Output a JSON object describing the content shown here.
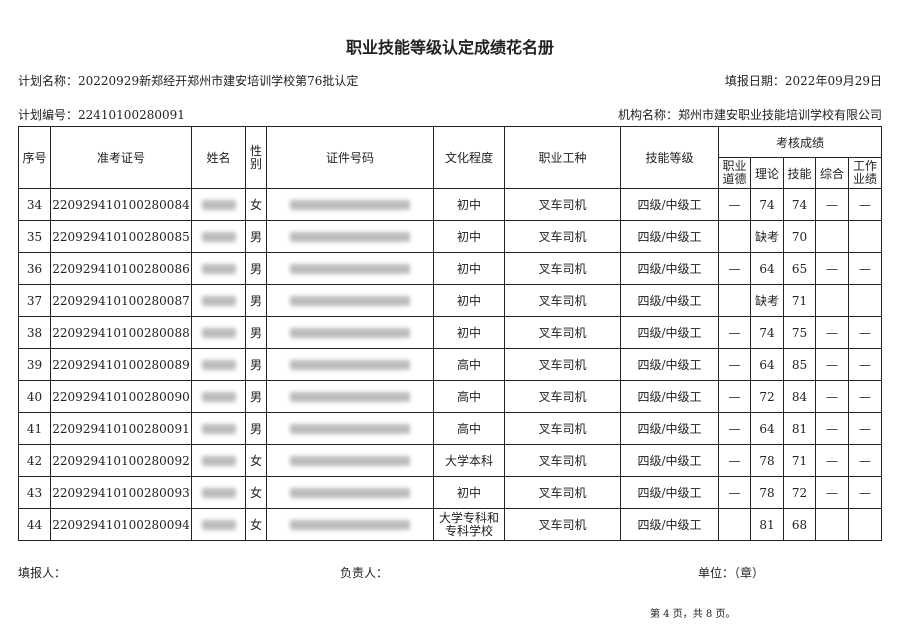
{
  "title": "职业技能等级认定成绩花名册",
  "plan_name": "计划名称：20220929新郑经开郑州市建安培训学校第76批认定",
  "report_date": "填报日期：2022年09月29日",
  "plan_number": "计划编号：22410100280091",
  "org_name": "机构名称：郑州市建安职业技能培训学校有限公司",
  "headers": {
    "seq": "序号",
    "exam_no": "准考证号",
    "name": "姓名",
    "gender": "性别",
    "id_no": "证件号码",
    "education": "文化程度",
    "occupation": "职业工种",
    "level": "技能等级",
    "scores": "考核成绩",
    "ethics": "职业道德",
    "theory": "理论",
    "skill": "技能",
    "overall": "综合",
    "performance": "工作业绩"
  },
  "rows": [
    {
      "seq": "34",
      "exam_no": "220929410100280084",
      "gender": "女",
      "education": "初中",
      "occupation": "叉车司机",
      "level": "四级/中级工",
      "ethics": "—",
      "theory": "74",
      "skill": "74",
      "overall": "—",
      "performance": "—"
    },
    {
      "seq": "35",
      "exam_no": "220929410100280085",
      "gender": "男",
      "education": "初中",
      "occupation": "叉车司机",
      "level": "四级/中级工",
      "ethics": "",
      "theory": "缺考",
      "skill": "70",
      "overall": "",
      "performance": ""
    },
    {
      "seq": "36",
      "exam_no": "220929410100280086",
      "gender": "男",
      "education": "初中",
      "occupation": "叉车司机",
      "level": "四级/中级工",
      "ethics": "—",
      "theory": "64",
      "skill": "65",
      "overall": "—",
      "performance": "—"
    },
    {
      "seq": "37",
      "exam_no": "220929410100280087",
      "gender": "男",
      "education": "初中",
      "occupation": "叉车司机",
      "level": "四级/中级工",
      "ethics": "",
      "theory": "缺考",
      "skill": "71",
      "overall": "",
      "performance": ""
    },
    {
      "seq": "38",
      "exam_no": "220929410100280088",
      "gender": "男",
      "education": "初中",
      "occupation": "叉车司机",
      "level": "四级/中级工",
      "ethics": "—",
      "theory": "74",
      "skill": "75",
      "overall": "—",
      "performance": "—"
    },
    {
      "seq": "39",
      "exam_no": "220929410100280089",
      "gender": "男",
      "education": "高中",
      "occupation": "叉车司机",
      "level": "四级/中级工",
      "ethics": "—",
      "theory": "64",
      "skill": "85",
      "overall": "—",
      "performance": "—"
    },
    {
      "seq": "40",
      "exam_no": "220929410100280090",
      "gender": "男",
      "education": "高中",
      "occupation": "叉车司机",
      "level": "四级/中级工",
      "ethics": "—",
      "theory": "72",
      "skill": "84",
      "overall": "—",
      "performance": "—"
    },
    {
      "seq": "41",
      "exam_no": "220929410100280091",
      "gender": "男",
      "education": "高中",
      "occupation": "叉车司机",
      "level": "四级/中级工",
      "ethics": "—",
      "theory": "64",
      "skill": "81",
      "overall": "—",
      "performance": "—"
    },
    {
      "seq": "42",
      "exam_no": "220929410100280092",
      "gender": "女",
      "education": "大学本科",
      "occupation": "叉车司机",
      "level": "四级/中级工",
      "ethics": "—",
      "theory": "78",
      "skill": "71",
      "overall": "—",
      "performance": "—"
    },
    {
      "seq": "43",
      "exam_no": "220929410100280093",
      "gender": "女",
      "education": "初中",
      "occupation": "叉车司机",
      "level": "四级/中级工",
      "ethics": "—",
      "theory": "78",
      "skill": "72",
      "overall": "—",
      "performance": "—"
    },
    {
      "seq": "44",
      "exam_no": "220929410100280094",
      "gender": "女",
      "education": "大学专科和专科学校",
      "occupation": "叉车司机",
      "level": "四级/中级工",
      "ethics": "",
      "theory": "81",
      "skill": "68",
      "overall": "",
      "performance": ""
    }
  ],
  "footer": {
    "filler": "填报人：",
    "responsible": "负责人：",
    "unit": "单位：（章）",
    "page": "第 4 页，共 8 页。"
  }
}
